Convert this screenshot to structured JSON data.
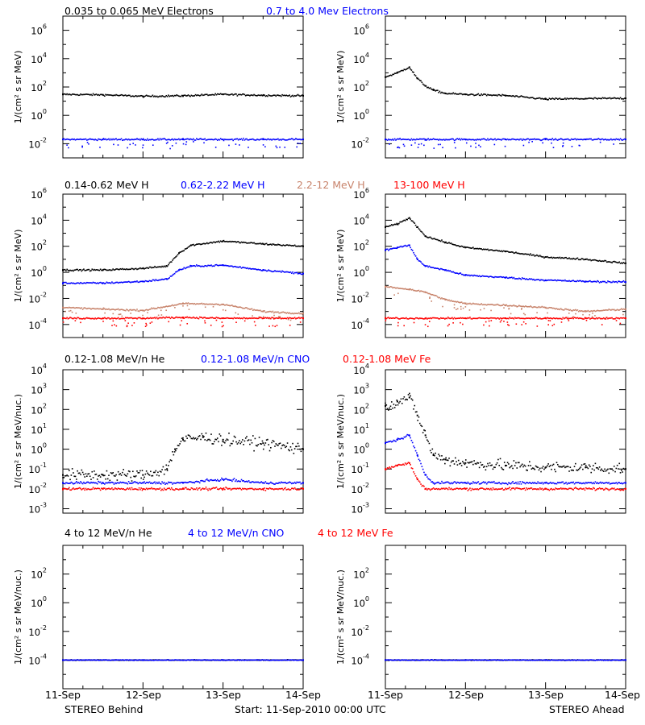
{
  "colors": {
    "black": "#000000",
    "blue": "#0000ff",
    "tan": "#c8846c",
    "red": "#ff0000"
  },
  "footer": {
    "left": "STEREO Behind",
    "center": "Start: 11-Sep-2010 00:00 UTC",
    "right": "STEREO Ahead"
  },
  "x_ticks": [
    "11-Sep",
    "12-Sep",
    "13-Sep",
    "14-Sep"
  ],
  "chart_data": [
    {
      "type": "scatter",
      "row": 1,
      "side": "Behind",
      "yscale": "log",
      "ylabel": "1/(cm² s sr MeV)",
      "ytick_exponents": [
        -2,
        0,
        2,
        4,
        6
      ],
      "ylim": [
        0.001,
        10000000
      ],
      "legend": [
        {
          "text": "0.035 to 0.065 MeV Electrons",
          "color": "#000000"
        },
        {
          "text": "0.7 to 4.0 Mev Electrons",
          "color": "#0000ff"
        }
      ],
      "series": [
        {
          "name": "0.035 to 0.065 MeV Electrons",
          "color": "#000000",
          "x": [
            0,
            0.5,
            1.0,
            1.5,
            2.0,
            2.5,
            3.0
          ],
          "y": [
            30,
            28,
            22,
            24,
            30,
            26,
            24
          ]
        },
        {
          "name": "0.7 to 4.0 Mev Electrons",
          "color": "#0000ff",
          "x": [
            0,
            0.5,
            1.0,
            1.5,
            2.0,
            2.5,
            3.0
          ],
          "y": [
            0.02,
            0.02,
            0.02,
            0.02,
            0.02,
            0.02,
            0.02
          ]
        }
      ]
    },
    {
      "type": "scatter",
      "row": 1,
      "side": "Ahead",
      "yscale": "log",
      "ylabel": "1/(cm² s sr MeV)",
      "ytick_exponents": [
        -2,
        0,
        2,
        4,
        6
      ],
      "ylim": [
        0.001,
        10000000
      ],
      "legend": [],
      "series": [
        {
          "name": "0.035 to 0.065 MeV Electrons",
          "color": "#000000",
          "x": [
            0,
            0.15,
            0.3,
            0.4,
            0.5,
            0.6,
            0.75,
            1.0,
            1.5,
            2.0,
            2.5,
            3.0
          ],
          "y": [
            500,
            1000,
            2500,
            400,
            120,
            60,
            35,
            30,
            25,
            14,
            15,
            16
          ]
        },
        {
          "name": "0.7 to 4.0 Mev Electrons",
          "color": "#0000ff",
          "x": [
            0,
            0.5,
            1.0,
            1.5,
            2.0,
            2.5,
            3.0
          ],
          "y": [
            0.02,
            0.02,
            0.02,
            0.02,
            0.02,
            0.02,
            0.02
          ]
        }
      ]
    },
    {
      "type": "scatter",
      "row": 2,
      "side": "Behind",
      "yscale": "log",
      "ylabel": "1/(cm² s sr MeV)",
      "ytick_exponents": [
        -4,
        -2,
        0,
        2,
        4,
        6
      ],
      "ylim": [
        1e-05,
        1000000
      ],
      "legend": [
        {
          "text": "0.14-0.62 MeV H",
          "color": "#000000"
        },
        {
          "text": "0.62-2.22 MeV H",
          "color": "#0000ff"
        },
        {
          "text": "2.2-12 MeV H",
          "color": "#c8846c"
        },
        {
          "text": "13-100 MeV H",
          "color": "#ff0000"
        }
      ],
      "series": [
        {
          "name": "0.14-0.62 MeV H",
          "color": "#000000",
          "x": [
            0,
            0.5,
            1.0,
            1.3,
            1.45,
            1.6,
            2.0,
            2.5,
            3.0
          ],
          "y": [
            1.5,
            1.5,
            2.0,
            3,
            30,
            120,
            250,
            150,
            100
          ]
        },
        {
          "name": "0.62-2.22 MeV H",
          "color": "#0000ff",
          "x": [
            0,
            0.5,
            1.0,
            1.3,
            1.45,
            1.6,
            2.0,
            2.5,
            3.0
          ],
          "y": [
            0.15,
            0.15,
            0.2,
            0.3,
            1.5,
            3,
            3.5,
            1.5,
            0.8
          ]
        },
        {
          "name": "2.2-12 MeV H",
          "color": "#c8846c",
          "x": [
            0,
            0.5,
            1.0,
            1.5,
            2.0,
            2.5,
            3.0
          ],
          "y": [
            0.002,
            0.0015,
            0.0012,
            0.004,
            0.0035,
            0.001,
            0.0007
          ]
        },
        {
          "name": "13-100 MeV H",
          "color": "#ff0000",
          "x": [
            0,
            0.5,
            1.0,
            1.5,
            2.0,
            2.5,
            3.0
          ],
          "y": [
            0.0003,
            0.0003,
            0.0003,
            0.00035,
            0.0003,
            0.0003,
            0.0003
          ]
        }
      ]
    },
    {
      "type": "scatter",
      "row": 2,
      "side": "Ahead",
      "yscale": "log",
      "ylabel": "1/(cm² s sr MeV)",
      "ytick_exponents": [
        -4,
        -2,
        0,
        2,
        4,
        6
      ],
      "ylim": [
        1e-05,
        1000000
      ],
      "legend": [],
      "series": [
        {
          "name": "0.14-0.62 MeV H",
          "color": "#000000",
          "x": [
            0,
            0.15,
            0.3,
            0.4,
            0.5,
            0.75,
            1.0,
            1.5,
            2.0,
            2.5,
            3.0
          ],
          "y": [
            3000,
            5000,
            15000,
            3000,
            600,
            200,
            80,
            40,
            15,
            10,
            5
          ]
        },
        {
          "name": "0.62-2.22 MeV H",
          "color": "#0000ff",
          "x": [
            0,
            0.15,
            0.3,
            0.4,
            0.5,
            0.75,
            1.0,
            1.5,
            2.0,
            2.5,
            3.0
          ],
          "y": [
            50,
            80,
            120,
            10,
            3,
            1.5,
            0.6,
            0.4,
            0.25,
            0.2,
            0.18
          ]
        },
        {
          "name": "2.2-12 MeV H",
          "color": "#c8846c",
          "x": [
            0,
            0.3,
            0.5,
            0.75,
            1.0,
            1.5,
            2.0,
            2.5,
            3.0
          ],
          "y": [
            0.08,
            0.05,
            0.03,
            0.008,
            0.004,
            0.003,
            0.002,
            0.001,
            0.0015
          ]
        },
        {
          "name": "13-100 MeV H",
          "color": "#ff0000",
          "x": [
            0,
            0.5,
            1.0,
            1.5,
            2.0,
            2.5,
            3.0
          ],
          "y": [
            0.0003,
            0.0003,
            0.0003,
            0.0003,
            0.0003,
            0.0003,
            0.0003
          ]
        }
      ]
    },
    {
      "type": "scatter",
      "row": 3,
      "side": "Behind",
      "yscale": "log",
      "ylabel": "1/(cm² s sr MeV/nuc.)",
      "ytick_exponents": [
        -3,
        -2,
        -1,
        0,
        1,
        2,
        3,
        4
      ],
      "ylim": [
        0.0006,
        10000
      ],
      "legend": [
        {
          "text": "0.12-1.08 MeV/n He",
          "color": "#000000"
        },
        {
          "text": "0.12-1.08 MeV/n CNO",
          "color": "#0000ff"
        },
        {
          "text": "0.12-1.08 MeV Fe",
          "color": "#ff0000"
        }
      ],
      "series": [
        {
          "name": "0.12-1.08 MeV/n He",
          "color": "#000000",
          "x": [
            0,
            0.5,
            1.0,
            1.3,
            1.4,
            1.5,
            1.75,
            2.0,
            2.5,
            3.0
          ],
          "y": [
            0.05,
            0.05,
            0.05,
            0.1,
            1.0,
            3.0,
            4.0,
            3.0,
            2.0,
            1.0
          ]
        },
        {
          "name": "0.12-1.08 MeV/n CNO",
          "color": "#0000ff",
          "x": [
            0,
            0.5,
            1.0,
            1.5,
            2.0,
            2.5,
            3.0
          ],
          "y": [
            0.02,
            0.02,
            0.02,
            0.02,
            0.03,
            0.02,
            0.02
          ]
        },
        {
          "name": "0.12-1.08 MeV Fe",
          "color": "#ff0000",
          "x": [
            0,
            0.5,
            1.0,
            1.5,
            2.0,
            2.5,
            3.0
          ],
          "y": [
            0.01,
            0.01,
            0.01,
            0.01,
            0.01,
            0.01,
            0.01
          ]
        }
      ]
    },
    {
      "type": "scatter",
      "row": 3,
      "side": "Ahead",
      "yscale": "log",
      "ylabel": "1/(cm² s sr MeV/nuc.)",
      "ytick_exponents": [
        -3,
        -2,
        -1,
        0,
        1,
        2,
        3,
        4
      ],
      "ylim": [
        0.0006,
        10000
      ],
      "legend": [],
      "series": [
        {
          "name": "0.12-1.08 MeV/n He",
          "color": "#000000",
          "x": [
            0,
            0.15,
            0.3,
            0.4,
            0.5,
            0.6,
            0.75,
            1.0,
            1.5,
            2.0,
            2.5,
            3.0
          ],
          "y": [
            150,
            250,
            400,
            50,
            5,
            0.5,
            0.3,
            0.2,
            0.15,
            0.12,
            0.12,
            0.1
          ]
        },
        {
          "name": "0.12-1.08 MeV/n CNO",
          "color": "#0000ff",
          "x": [
            0,
            0.15,
            0.3,
            0.4,
            0.5,
            0.6,
            1.0,
            2.0,
            3.0
          ],
          "y": [
            2,
            3,
            5,
            0.5,
            0.05,
            0.02,
            0.02,
            0.02,
            0.02
          ]
        },
        {
          "name": "0.12-1.08 MeV Fe",
          "color": "#ff0000",
          "x": [
            0,
            0.15,
            0.3,
            0.4,
            0.5,
            1.0,
            2.0,
            3.0
          ],
          "y": [
            0.1,
            0.15,
            0.2,
            0.03,
            0.01,
            0.01,
            0.01,
            0.01
          ]
        }
      ]
    },
    {
      "type": "scatter",
      "row": 4,
      "side": "Behind",
      "yscale": "log",
      "ylabel": "1/(cm² s sr MeV/nuc.)",
      "ytick_exponents": [
        -4,
        -2,
        0,
        2
      ],
      "ylim": [
        1e-06,
        10000
      ],
      "legend": [
        {
          "text": "4 to 12 MeV/n He",
          "color": "#000000"
        },
        {
          "text": "4 to 12 MeV/n CNO",
          "color": "#0000ff"
        },
        {
          "text": "4 to 12 MeV Fe",
          "color": "#ff0000"
        }
      ],
      "series": [
        {
          "name": "4 to 12 MeV/n He",
          "color": "#000000",
          "x": [
            0,
            1.0,
            2.0,
            3.0
          ],
          "y": [
            0.0001,
            0.0001,
            0.0001,
            0.0001
          ]
        },
        {
          "name": "4 to 12 MeV/n CNO",
          "color": "#0000ff",
          "x": [
            0,
            1.0,
            2.0,
            3.0
          ],
          "y": [
            0.0001,
            0.0001,
            0.0001,
            0.0001
          ]
        }
      ]
    },
    {
      "type": "scatter",
      "row": 4,
      "side": "Ahead",
      "yscale": "log",
      "ylabel": "1/(cm² s sr MeV/nuc.)",
      "ytick_exponents": [
        -4,
        -2,
        0,
        2
      ],
      "ylim": [
        1e-06,
        10000
      ],
      "legend": [],
      "series": [
        {
          "name": "4 to 12 MeV/n He",
          "color": "#000000",
          "x": [
            0,
            1.0,
            2.0,
            3.0
          ],
          "y": [
            0.0001,
            0.0001,
            0.0001,
            0.0001
          ]
        },
        {
          "name": "4 to 12 MeV/n CNO",
          "color": "#0000ff",
          "x": [
            0,
            1.0,
            2.0,
            3.0
          ],
          "y": [
            0.0001,
            0.0001,
            0.0001,
            0.0001
          ]
        }
      ]
    }
  ]
}
